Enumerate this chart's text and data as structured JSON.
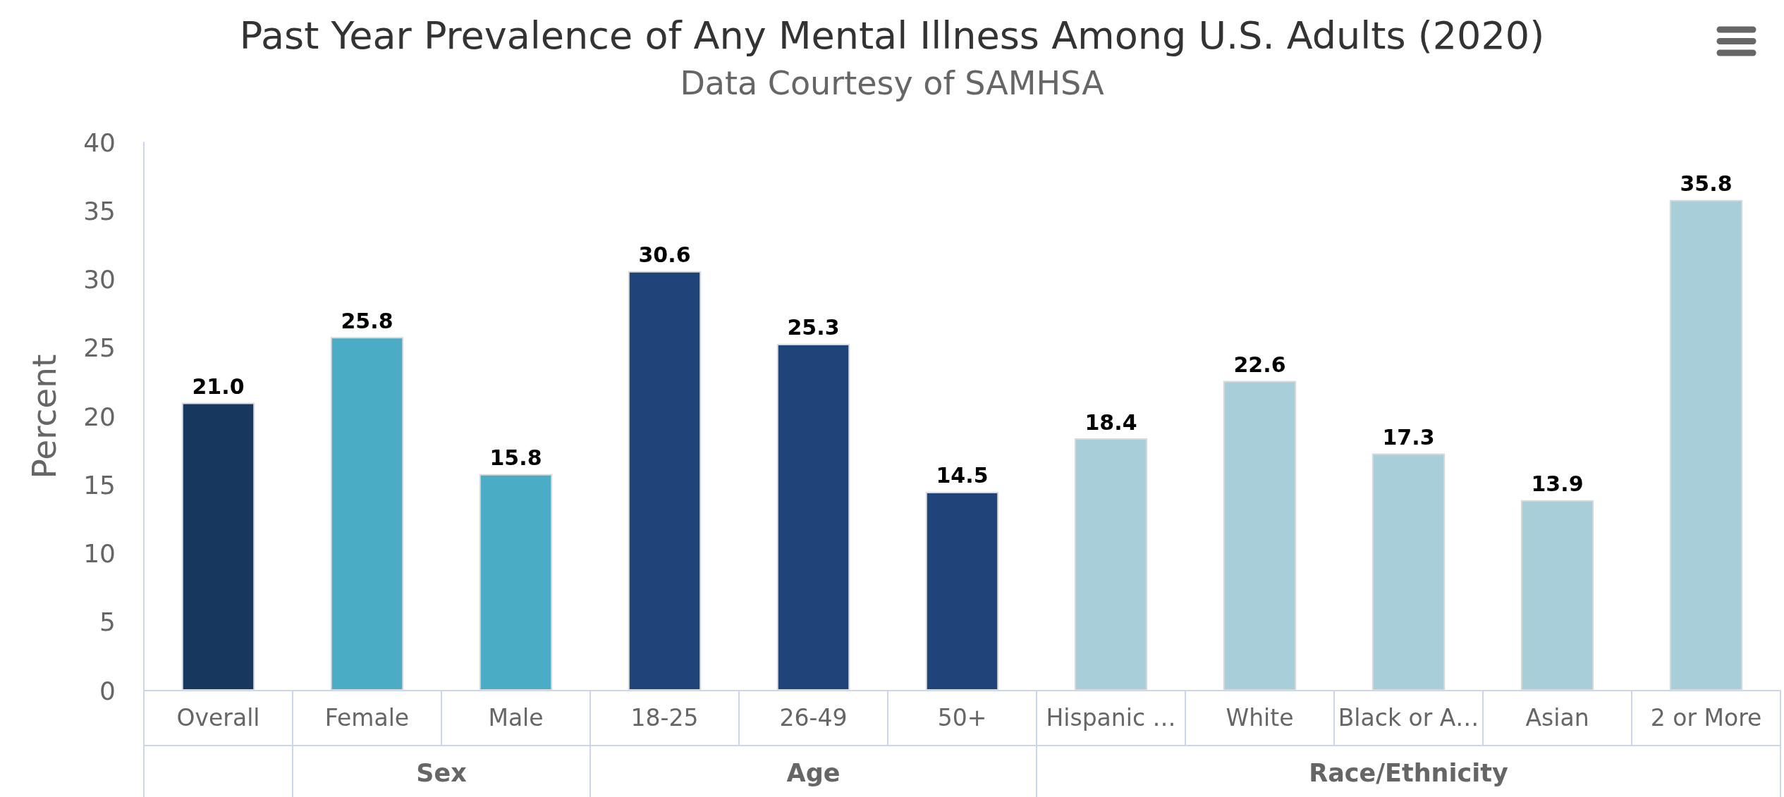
{
  "chart_data": {
    "type": "bar",
    "title": "Past Year Prevalence of Any Mental Illness Among U.S. Adults (2020)",
    "subtitle": "Data Courtesy of SAMHSA",
    "ylabel": "Percent",
    "categories": [
      "Overall",
      "Female",
      "Male",
      "18-25",
      "26-49",
      "50+",
      "Hispanic …",
      "White",
      "Black or A…",
      "Asian",
      "2 or More"
    ],
    "series": [
      {
        "color": "#17375e",
        "values": [
          21.0,
          null,
          null,
          null,
          null,
          null,
          null,
          null,
          null,
          null,
          null
        ],
        "value_labels": [
          "21.0",
          null,
          null,
          null,
          null,
          null,
          null,
          null,
          null,
          null,
          null
        ]
      },
      {
        "name": "Sex",
        "color": "#4bacc6",
        "values": [
          null,
          25.8,
          15.8,
          null,
          null,
          null,
          null,
          null,
          null,
          null,
          null
        ],
        "value_labels": [
          null,
          "25.8",
          "15.8",
          null,
          null,
          null,
          null,
          null,
          null,
          null,
          null
        ]
      },
      {
        "name": "Age",
        "color": "#1f4479",
        "values": [
          null,
          null,
          null,
          30.6,
          25.3,
          14.5,
          null,
          null,
          null,
          null,
          null
        ],
        "value_labels": [
          null,
          null,
          null,
          "30.6",
          "25.3",
          "14.5",
          null,
          null,
          null,
          null,
          null
        ]
      },
      {
        "name": "Race/Ethnicity",
        "color": "#a8cfd9",
        "values": [
          null,
          null,
          null,
          null,
          null,
          null,
          18.4,
          22.6,
          17.3,
          13.9,
          35.8
        ],
        "value_labels": [
          null,
          null,
          null,
          null,
          null,
          null,
          "18.4",
          "22.6",
          "17.3",
          "13.9",
          "35.8"
        ]
      }
    ],
    "ylim": [
      0,
      40
    ],
    "yticks": [
      0,
      5,
      10,
      15,
      20,
      25,
      30,
      35,
      40
    ],
    "grid": false,
    "legend": false
  }
}
